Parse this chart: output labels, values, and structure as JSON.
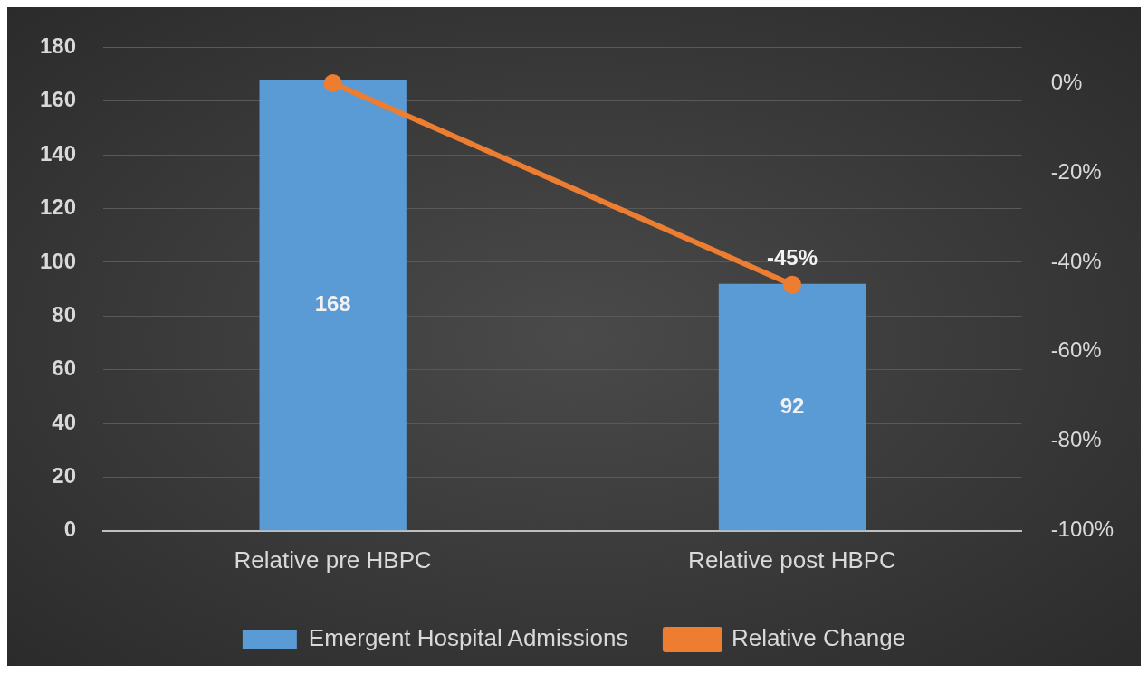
{
  "chart_data": {
    "type": "bar",
    "categories": [
      "Relative pre HBPC",
      "Relative post HBPC"
    ],
    "series": [
      {
        "name": "Emergent Hospital Admissions",
        "color": "#5b9bd5",
        "values": [
          168,
          92
        ],
        "value_labels": [
          "168",
          "92"
        ]
      },
      {
        "name": "Relative Change",
        "type": "line",
        "color": "#ed7d31",
        "values": [
          0,
          -45
        ],
        "axis": "y2",
        "value_labels": [
          null,
          "-45%"
        ],
        "marker": "circle"
      }
    ],
    "ylim": [
      0,
      180
    ],
    "yticks": [
      0,
      20,
      40,
      60,
      80,
      100,
      120,
      140,
      160,
      180
    ],
    "y2lim": [
      -100,
      8
    ],
    "y2ticks": [
      {
        "value": -100,
        "label": "-100%"
      },
      {
        "value": -80,
        "label": "-80%"
      },
      {
        "value": -60,
        "label": "-60%"
      },
      {
        "value": -40,
        "label": "-40%"
      },
      {
        "value": -20,
        "label": "-20%"
      },
      {
        "value": 0,
        "label": "0%"
      }
    ],
    "grid": "y",
    "legend": "bottom"
  }
}
